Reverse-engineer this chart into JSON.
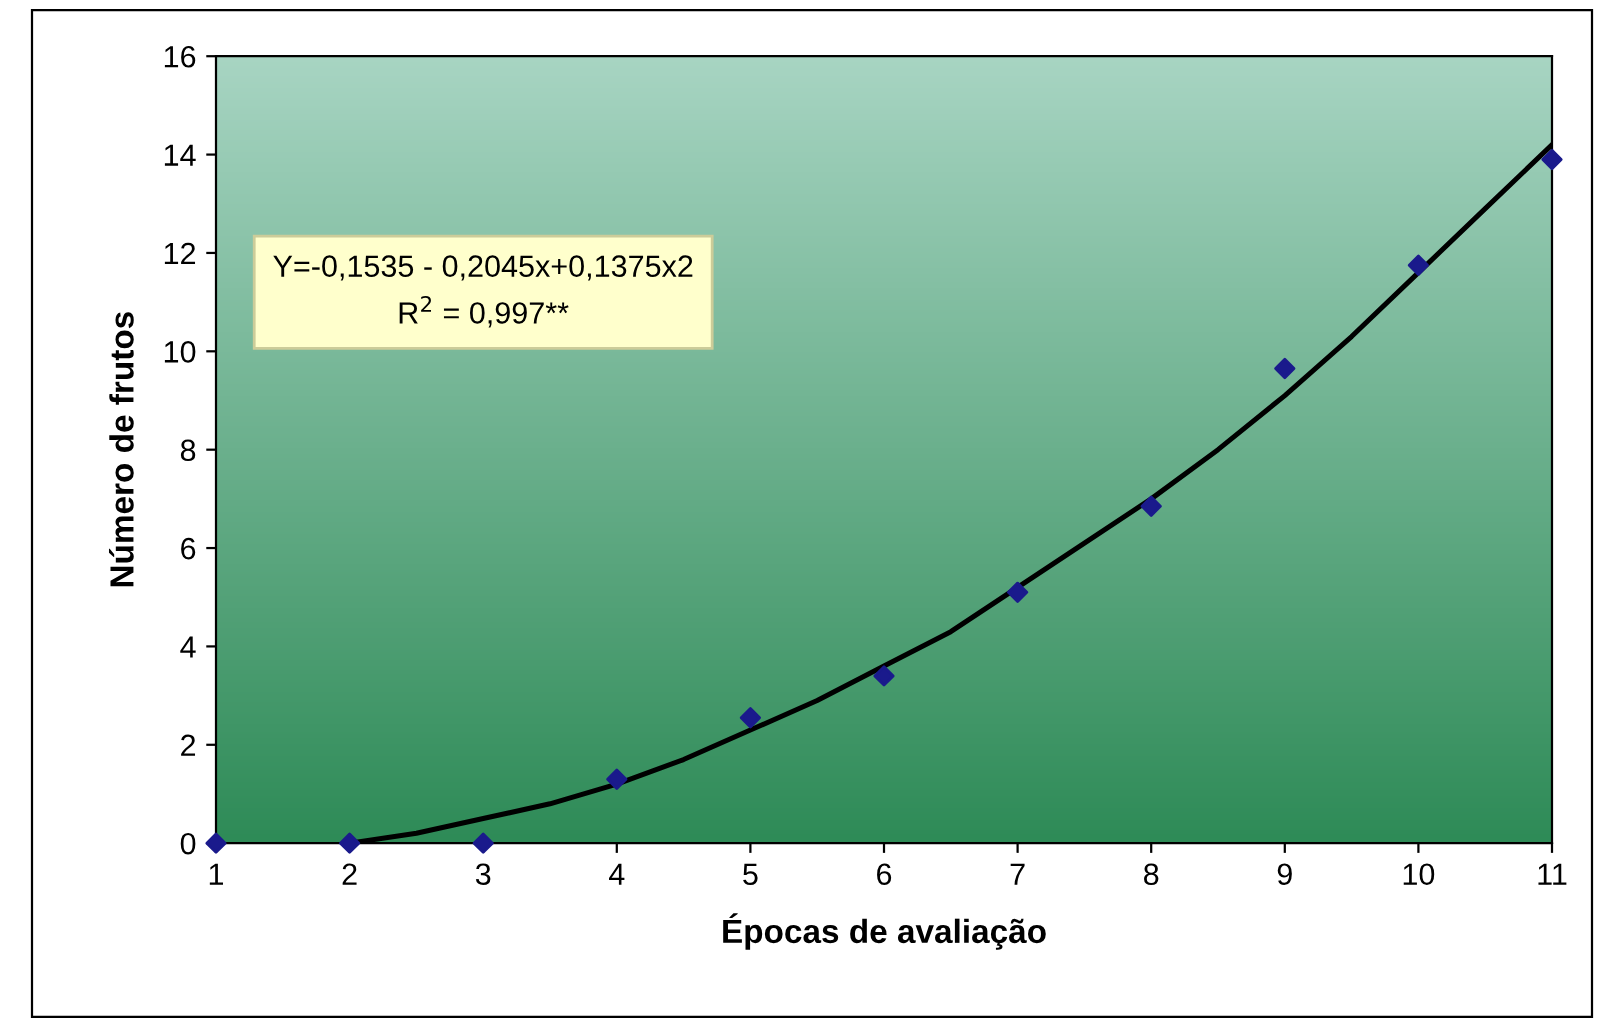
{
  "chart_data": {
    "type": "scatter",
    "xlabel": "Épocas de avaliação",
    "ylabel": "Número de frutos",
    "series": [
      {
        "color": "#1a1a8c",
        "marker": "diamond",
        "x": [
          1,
          2,
          3,
          4,
          5,
          6,
          7,
          8,
          9,
          10,
          11
        ],
        "values": [
          0,
          0,
          0,
          1.3,
          2.55,
          3.4,
          5.1,
          6.85,
          9.65,
          11.75,
          13.9
        ]
      },
      {
        "type": "line",
        "color": "#000000",
        "marker": "none",
        "line_style": "solid",
        "x": [
          2,
          2.5,
          3,
          3.5,
          4,
          4.5,
          5,
          5.5,
          6,
          6.5,
          7,
          7.5,
          8,
          8.5,
          9,
          9.5,
          10,
          10.5,
          11
        ],
        "values": [
          0,
          0.2,
          0.5,
          0.8,
          1.2,
          1.7,
          2.3,
          2.9,
          3.6,
          4.3,
          5.2,
          6.1,
          7.0,
          8.0,
          9.1,
          10.3,
          11.6,
          12.9,
          14.2
        ]
      }
    ],
    "xlim": [
      1,
      11
    ],
    "xticks": [
      1,
      2,
      3,
      4,
      5,
      6,
      7,
      8,
      9,
      10,
      11
    ],
    "ylim": [
      0,
      16
    ],
    "yticks": [
      0,
      2,
      4,
      6,
      8,
      10,
      12,
      14,
      16
    ],
    "grid": false,
    "legend": false,
    "annotations": [
      {
        "text": "Y=-0,1535 - 0,2045x+0,1375x2\nR$^{2}$ = 0,997**"
      }
    ]
  }
}
